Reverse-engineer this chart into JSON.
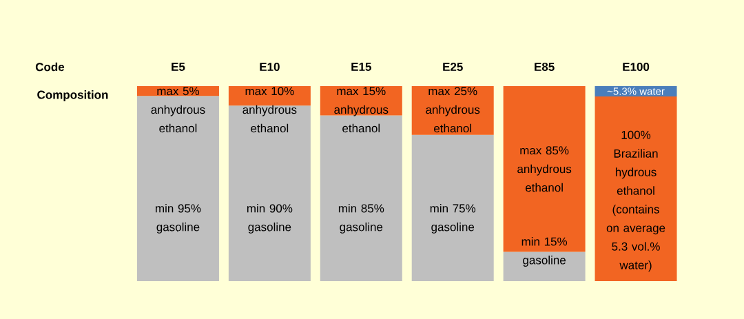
{
  "chart_data": {
    "type": "bar",
    "stacked": true,
    "ylabel": "Composition",
    "categories": [
      "E5",
      "E10",
      "E15",
      "E25",
      "E85",
      "E100"
    ],
    "ylim": [
      0,
      100
    ],
    "tick_labels": "x",
    "series": [
      {
        "color": "#bfbfbf",
        "values": [
          95,
          90,
          85,
          75,
          15,
          null
        ],
        "value_labels": [
          "min 95% gasoline",
          "min 90% gasoline",
          "min 85% gasoline",
          "min 75% gasoline",
          "min 15% gasoline",
          null
        ]
      },
      {
        "color": "#f26522",
        "values": [
          5,
          10,
          15,
          25,
          85,
          94.7
        ],
        "value_labels": [
          "max 5% anhydrous ethanol",
          "max 10% anhydrous ethanol",
          "max 15% anhydrous ethanol",
          "max 25% anhydrous ethanol",
          "max 85% anhydrous ethanol",
          null
        ]
      },
      {
        "color": "#4a7ebb",
        "values": [
          null,
          null,
          null,
          null,
          null,
          5.3
        ],
        "value_labels": [
          null,
          null,
          null,
          null,
          null,
          "~5.3% water"
        ]
      }
    ],
    "annotations": [
      "Code",
      "100% Brazilian hydrous ethanol (contains on average 5.3 vol.% water)"
    ]
  }
}
